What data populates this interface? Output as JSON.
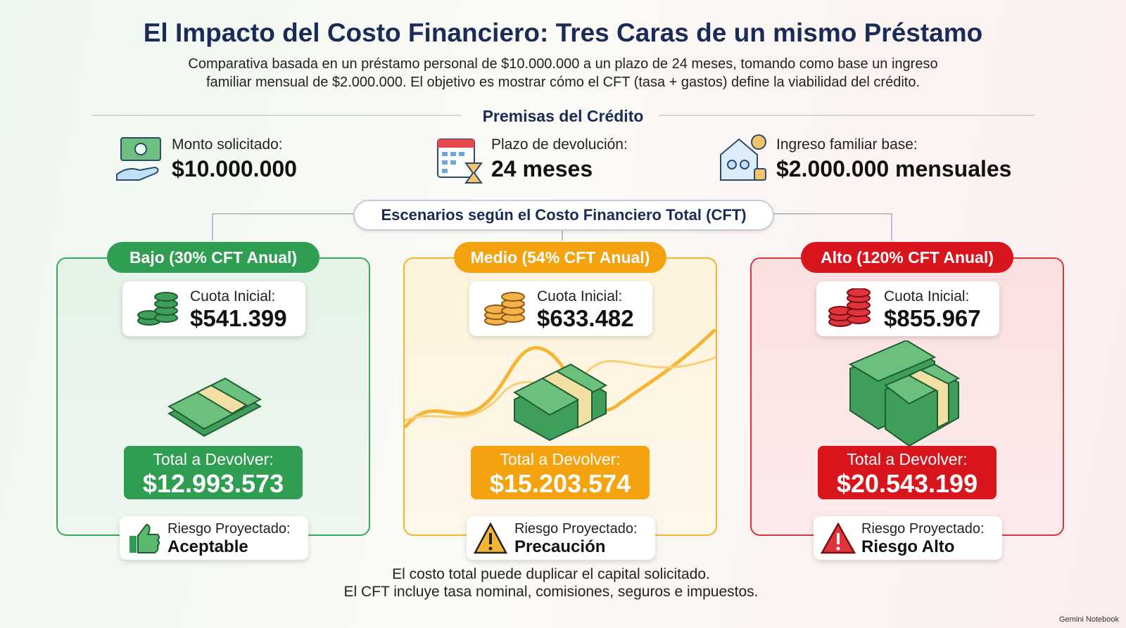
{
  "header": {
    "title": "El Impacto del Costo Financiero: Tres Caras de un mismo Préstamo",
    "subtitle_lines": [
      "Comparativa basada en un préstamo personal de $10.000.000 a un plazo de 24 meses, tomando como base un ingreso",
      "familiar mensual de $2.000.000. El objetivo es mostrar cómo el CFT (tasa + gastos) define la viabilidad del crédito."
    ]
  },
  "premises": {
    "heading": "Premisas del Crédito",
    "items": [
      {
        "label": "Monto solicitado:",
        "value": "$10.000.000"
      },
      {
        "label": "Plazo de devolución:",
        "value": "24 meses"
      },
      {
        "label": "Ingreso familiar base:",
        "value": "$2.000.000 mensuales"
      }
    ]
  },
  "scenarios": {
    "heading": "Escenarios según el Costo Financiero Total (CFT)",
    "cards": [
      {
        "badge": "Bajo (30% CFT Anual)",
        "quota_label": "Cuota Inicial:",
        "quota_value": "$541.399",
        "total_label": "Total a Devolver:",
        "total_value": "$12.993.573",
        "risk_label": "Riesgo Proyectado:",
        "risk_value": "Aceptable"
      },
      {
        "badge": "Medio (54% CFT Anual)",
        "quota_label": "Cuota Inicial:",
        "quota_value": "$633.482",
        "total_label": "Total a Devolver:",
        "total_value": "$15.203.574",
        "risk_label": "Riesgo Proyectado:",
        "risk_value": "Precaución"
      },
      {
        "badge": "Alto (120% CFT Anual)",
        "quota_label": "Cuota Inicial:",
        "quota_value": "$855.967",
        "total_label": "Total a Devolver:",
        "total_value": "$20.543.199",
        "risk_label": "Riesgo Proyectado:",
        "risk_value": "Riesgo Alto"
      }
    ]
  },
  "footer": {
    "lines": [
      "El costo total puede duplicar el capital solicitado.",
      "El CFT incluye tasa nominal, comisiones, seguros e impuestos."
    ]
  },
  "watermark": "Gemini Notebook"
}
